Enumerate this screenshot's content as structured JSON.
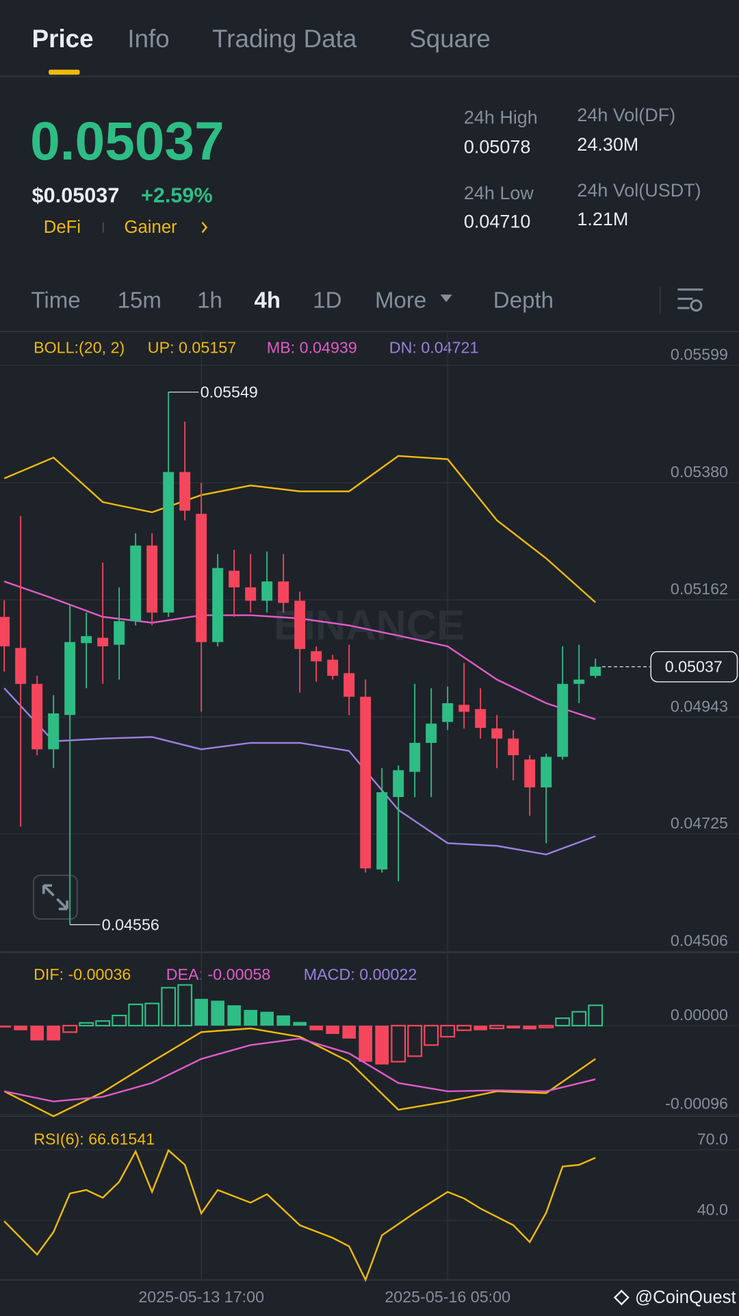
{
  "tabs": [
    "Price",
    "Info",
    "Trading Data",
    "Square"
  ],
  "price": {
    "last": "0.05037",
    "usd": "$0.05037",
    "change": "+2.59%",
    "tags": [
      "DeFi",
      "Gainer"
    ]
  },
  "stats": [
    {
      "label": "24h High",
      "value": "0.05078"
    },
    {
      "label": "24h Low",
      "value": "0.04710"
    },
    {
      "label": "24h Vol(DF)",
      "value": "24.30M"
    },
    {
      "label": "24h Vol(USDT)",
      "value": "1.21M"
    }
  ],
  "intervals": [
    "Time",
    "15m",
    "1h",
    "4h",
    "1D",
    "More",
    "Depth"
  ],
  "watermark": "BINANCE",
  "footer": "@CoinQuest",
  "chart_data": [
    {
      "type": "candlestick",
      "indicator": "BOLL:(20, 2)",
      "up_color": "#2ebd85",
      "down_color": "#f6465d",
      "ylim": [
        0.04504,
        0.05662
      ],
      "yticks": [
        0.05599,
        {
          "value": 0.0538,
          "label": "0.05380"
        },
        0.05162,
        0.04943,
        0.04725,
        0.04506
      ],
      "last_price": 0.05037,
      "candles": [
        {
          "open": 0.0513,
          "high": 0.05161,
          "low": 0.05028,
          "close": 0.05075
        },
        {
          "open": 0.05072,
          "high": 0.05318,
          "low": 0.04739,
          "close": 0.05005
        },
        {
          "open": 0.05005,
          "high": 0.0502,
          "low": 0.04872,
          "close": 0.04883
        },
        {
          "open": 0.04883,
          "high": 0.04984,
          "low": 0.04848,
          "close": 0.0495
        },
        {
          "open": 0.04947,
          "high": 0.05153,
          "low": 0.04556,
          "close": 0.05083
        },
        {
          "open": 0.05081,
          "high": 0.05138,
          "low": 0.04997,
          "close": 0.05094
        },
        {
          "open": 0.05091,
          "high": 0.05231,
          "low": 0.05005,
          "close": 0.05075
        },
        {
          "open": 0.05078,
          "high": 0.05185,
          "low": 0.05013,
          "close": 0.05122
        },
        {
          "open": 0.05122,
          "high": 0.05286,
          "low": 0.05114,
          "close": 0.05263
        },
        {
          "open": 0.05263,
          "high": 0.05286,
          "low": 0.05114,
          "close": 0.05138
        },
        {
          "open": 0.05138,
          "high": 0.05549,
          "low": 0.0513,
          "close": 0.054
        },
        {
          "open": 0.054,
          "high": 0.05494,
          "low": 0.0531,
          "close": 0.05328
        },
        {
          "open": 0.05322,
          "high": 0.0538,
          "low": 0.04953,
          "close": 0.05083
        },
        {
          "open": 0.05083,
          "high": 0.05247,
          "low": 0.05075,
          "close": 0.05221
        },
        {
          "open": 0.05216,
          "high": 0.05255,
          "low": 0.0513,
          "close": 0.05185
        },
        {
          "open": 0.05185,
          "high": 0.05247,
          "low": 0.05138,
          "close": 0.0516
        },
        {
          "open": 0.0516,
          "high": 0.05252,
          "low": 0.05138,
          "close": 0.05196
        },
        {
          "open": 0.05196,
          "high": 0.05247,
          "low": 0.05138,
          "close": 0.05156
        },
        {
          "open": 0.0516,
          "high": 0.05177,
          "low": 0.04989,
          "close": 0.0507
        },
        {
          "open": 0.05066,
          "high": 0.05075,
          "low": 0.05009,
          "close": 0.05047
        },
        {
          "open": 0.0505,
          "high": 0.05059,
          "low": 0.05013,
          "close": 0.0502
        },
        {
          "open": 0.05025,
          "high": 0.05078,
          "low": 0.04947,
          "close": 0.04981
        },
        {
          "open": 0.04981,
          "high": 0.05013,
          "low": 0.04653,
          "close": 0.04661
        },
        {
          "open": 0.04659,
          "high": 0.04848,
          "low": 0.04653,
          "close": 0.04803
        },
        {
          "open": 0.04794,
          "high": 0.04853,
          "low": 0.04637,
          "close": 0.04844
        },
        {
          "open": 0.04841,
          "high": 0.05005,
          "low": 0.04794,
          "close": 0.04895
        },
        {
          "open": 0.04895,
          "high": 0.04997,
          "low": 0.04794,
          "close": 0.04931
        },
        {
          "open": 0.04934,
          "high": 0.05,
          "low": 0.04919,
          "close": 0.04969
        },
        {
          "open": 0.04966,
          "high": 0.05044,
          "low": 0.04922,
          "close": 0.04953
        },
        {
          "open": 0.04958,
          "high": 0.04997,
          "low": 0.04903,
          "close": 0.04923
        },
        {
          "open": 0.04922,
          "high": 0.04947,
          "low": 0.04848,
          "close": 0.04903
        },
        {
          "open": 0.04903,
          "high": 0.04919,
          "low": 0.04825,
          "close": 0.04872
        },
        {
          "open": 0.04864,
          "high": 0.04872,
          "low": 0.04759,
          "close": 0.04812
        },
        {
          "open": 0.04812,
          "high": 0.04875,
          "low": 0.04708,
          "close": 0.04869
        },
        {
          "open": 0.04869,
          "high": 0.05075,
          "low": 0.04864,
          "close": 0.05005
        },
        {
          "open": 0.05005,
          "high": 0.05078,
          "low": 0.04969,
          "close": 0.05013
        },
        {
          "open": 0.0502,
          "high": 0.05052,
          "low": 0.05016,
          "close": 0.05037
        }
      ],
      "x": [
        0,
        3,
        6,
        9,
        12,
        15,
        18,
        21,
        24,
        27,
        30,
        33,
        36
      ],
      "series": [
        {
          "legend": "UP: 0.05157",
          "color": "#f0b90b",
          "values": [
            0.05388,
            0.05427,
            0.05344,
            0.05325,
            0.05357,
            0.05375,
            0.05364,
            0.05364,
            0.0543,
            0.05424,
            0.0531,
            0.05239,
            0.05157
          ]
        },
        {
          "legend": "MB: 0.04939",
          "color": "#e05bc8",
          "values": [
            0.05196,
            0.05164,
            0.0513,
            0.05119,
            0.05133,
            0.05133,
            0.05127,
            0.05114,
            0.05095,
            0.05075,
            0.05013,
            0.04969,
            0.04939
          ]
        },
        {
          "legend": "DN: 0.04721",
          "color": "#9b7fe0",
          "values": [
            0.04997,
            0.04898,
            0.04903,
            0.04906,
            0.04883,
            0.04895,
            0.04895,
            0.0488,
            0.0477,
            0.04708,
            0.04703,
            0.04687,
            0.04721
          ]
        }
      ]
    },
    {
      "type": "macd",
      "up_color": "#2ebd85",
      "down_color": "#f6465d",
      "ylim": [
        -0.00098,
        0.00079
      ],
      "yticks": [
        {
          "value": 0,
          "label": "0.00000"
        },
        -0.00096
      ],
      "histogram": {
        "legend": "MACD: 0.00022",
        "color": "#9b7fe0",
        "values": [
          -2e-05,
          -5e-05,
          -0.00016,
          -0.00016,
          -7e-05,
          3e-05,
          5e-05,
          0.00011,
          0.00023,
          0.00024,
          0.00041,
          0.00044,
          0.00029,
          0.00027,
          0.00022,
          0.00017,
          0.00015,
          0.00011,
          4e-05,
          -5e-05,
          -9e-05,
          -0.00014,
          -0.00039,
          -0.00042,
          -0.00039,
          -0.00033,
          -0.00021,
          -0.00012,
          -5e-05,
          -5e-05,
          -3e-05,
          -3e-05,
          -4e-05,
          -2e-05,
          8e-05,
          0.00015,
          0.00022
        ]
      },
      "x": [
        0,
        3,
        6,
        9,
        12,
        15,
        18,
        21,
        24,
        27,
        30,
        33,
        36
      ],
      "series": [
        {
          "legend": "DIF: -0.00036",
          "color": "#f0b90b",
          "values": [
            -0.00071,
            -0.00098,
            -0.00072,
            -0.00039,
            -7e-05,
            -3e-05,
            -0.00012,
            -0.00039,
            -0.00091,
            -0.00082,
            -0.00071,
            -0.00073,
            -0.00036
          ]
        },
        {
          "legend": "DEA: -0.00058",
          "color": "#e05bc8",
          "values": [
            -0.00071,
            -0.00082,
            -0.00077,
            -0.00062,
            -0.00036,
            -0.00021,
            -0.00014,
            -0.0003,
            -0.00062,
            -0.00071,
            -0.0007,
            -0.00071,
            -0.00058
          ]
        }
      ]
    },
    {
      "type": "line",
      "ylim": [
        14.6,
        84.3
      ],
      "yticks": [
        {
          "value": 70,
          "label": "70.0"
        },
        {
          "value": 40,
          "label": "40.0"
        }
      ],
      "xticks": [
        {
          "value": 12,
          "label": "2025-05-13 17:00"
        },
        {
          "value": 27,
          "label": "2025-05-16 05:00"
        }
      ],
      "x": [
        0,
        2,
        3,
        4,
        5,
        6,
        7,
        8,
        9,
        10,
        11,
        12,
        13,
        15,
        16,
        18,
        20,
        21,
        22,
        23,
        25,
        27,
        28,
        29,
        31,
        32,
        33,
        34,
        35,
        36
      ],
      "series": [
        {
          "legend": "RSI(6): 66.61541",
          "color": "#f0b90b",
          "values": [
            39.6,
            25.4,
            35.0,
            51.4,
            52.9,
            49.6,
            56.4,
            69.3,
            52.1,
            69.8,
            63.6,
            42.9,
            52.9,
            47.5,
            51.1,
            37.9,
            32.5,
            28.9,
            14.6,
            33.6,
            43.2,
            52.1,
            49.3,
            45.0,
            37.9,
            30.7,
            43.2,
            62.9,
            63.6,
            66.62
          ]
        }
      ]
    }
  ]
}
